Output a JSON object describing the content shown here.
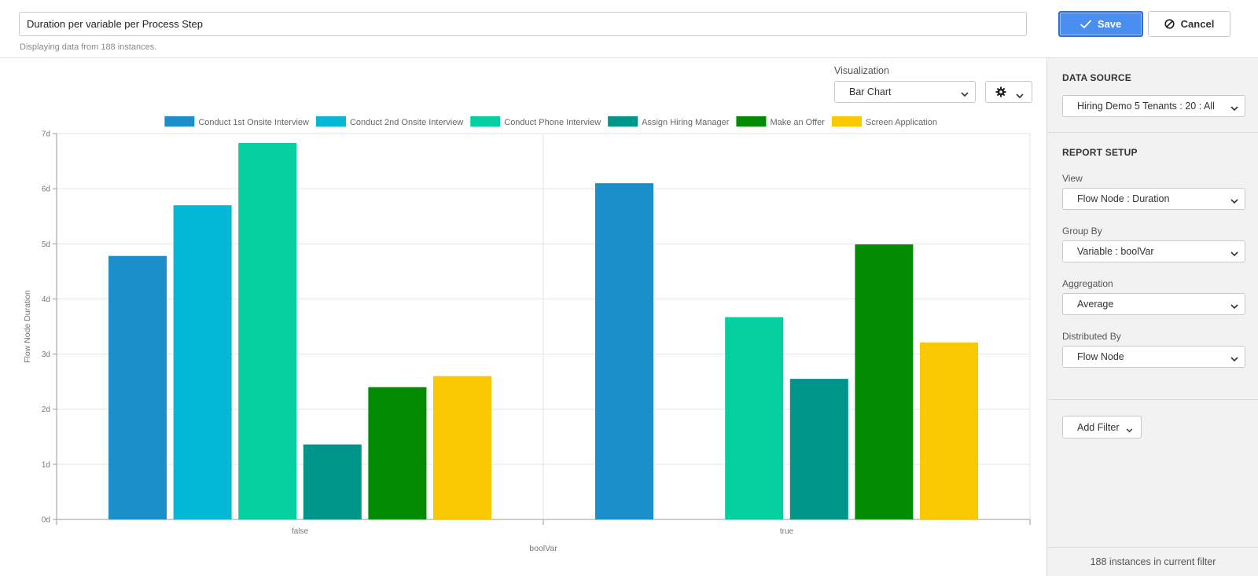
{
  "header": {
    "report_name": "Duration per variable per Process Step",
    "subtitle": "Displaying data from 188 instances.",
    "save_label": "Save",
    "cancel_label": "Cancel"
  },
  "visualization": {
    "label": "Visualization",
    "selected": "Bar Chart"
  },
  "panel": {
    "data_source_title": "DATA SOURCE",
    "data_source_value": "Hiring Demo 5 Tenants : 20 : All",
    "report_setup_title": "REPORT SETUP",
    "view_label": "View",
    "view_value": "Flow Node : Duration",
    "group_by_label": "Group By",
    "group_by_value": "Variable : boolVar",
    "aggregation_label": "Aggregation",
    "aggregation_value": "Average",
    "distributed_by_label": "Distributed By",
    "distributed_by_value": "Flow Node",
    "add_filter_label": "Add Filter",
    "footer_text": "188 instances in current filter"
  },
  "colors": {
    "accent": "#4a8ff0"
  },
  "icons": {
    "save": "checkmark-icon",
    "cancel": "cancel-circle-icon",
    "settings": "gear-icon",
    "dropdown": "chevron-down-icon"
  },
  "chart_data": {
    "type": "bar",
    "categories": [
      "false",
      "true"
    ],
    "xlabel": "boolVar",
    "ylabel": "Flow Node Duration",
    "ylim": [
      0,
      7
    ],
    "yticks": [
      "0d",
      "1d",
      "2d",
      "3d",
      "4d",
      "5d",
      "6d",
      "7d"
    ],
    "grid": true,
    "legend_position": "top",
    "series": [
      {
        "name": "Conduct 1st Onsite Interview",
        "color": "#1a8fca",
        "values": [
          4.78,
          6.1
        ]
      },
      {
        "name": "Conduct 2nd Onsite Interview",
        "color": "#04b8d5",
        "values": [
          5.7,
          0
        ]
      },
      {
        "name": "Conduct Phone Interview",
        "color": "#05cf9f",
        "values": [
          6.83,
          3.67
        ]
      },
      {
        "name": "Assign Hiring Manager",
        "color": "#00958a",
        "values": [
          1.36,
          2.55
        ]
      },
      {
        "name": "Make an Offer",
        "color": "#038b03",
        "values": [
          2.4,
          4.99
        ]
      },
      {
        "name": "Screen Application",
        "color": "#fac801",
        "values": [
          2.6,
          3.21
        ]
      }
    ]
  }
}
